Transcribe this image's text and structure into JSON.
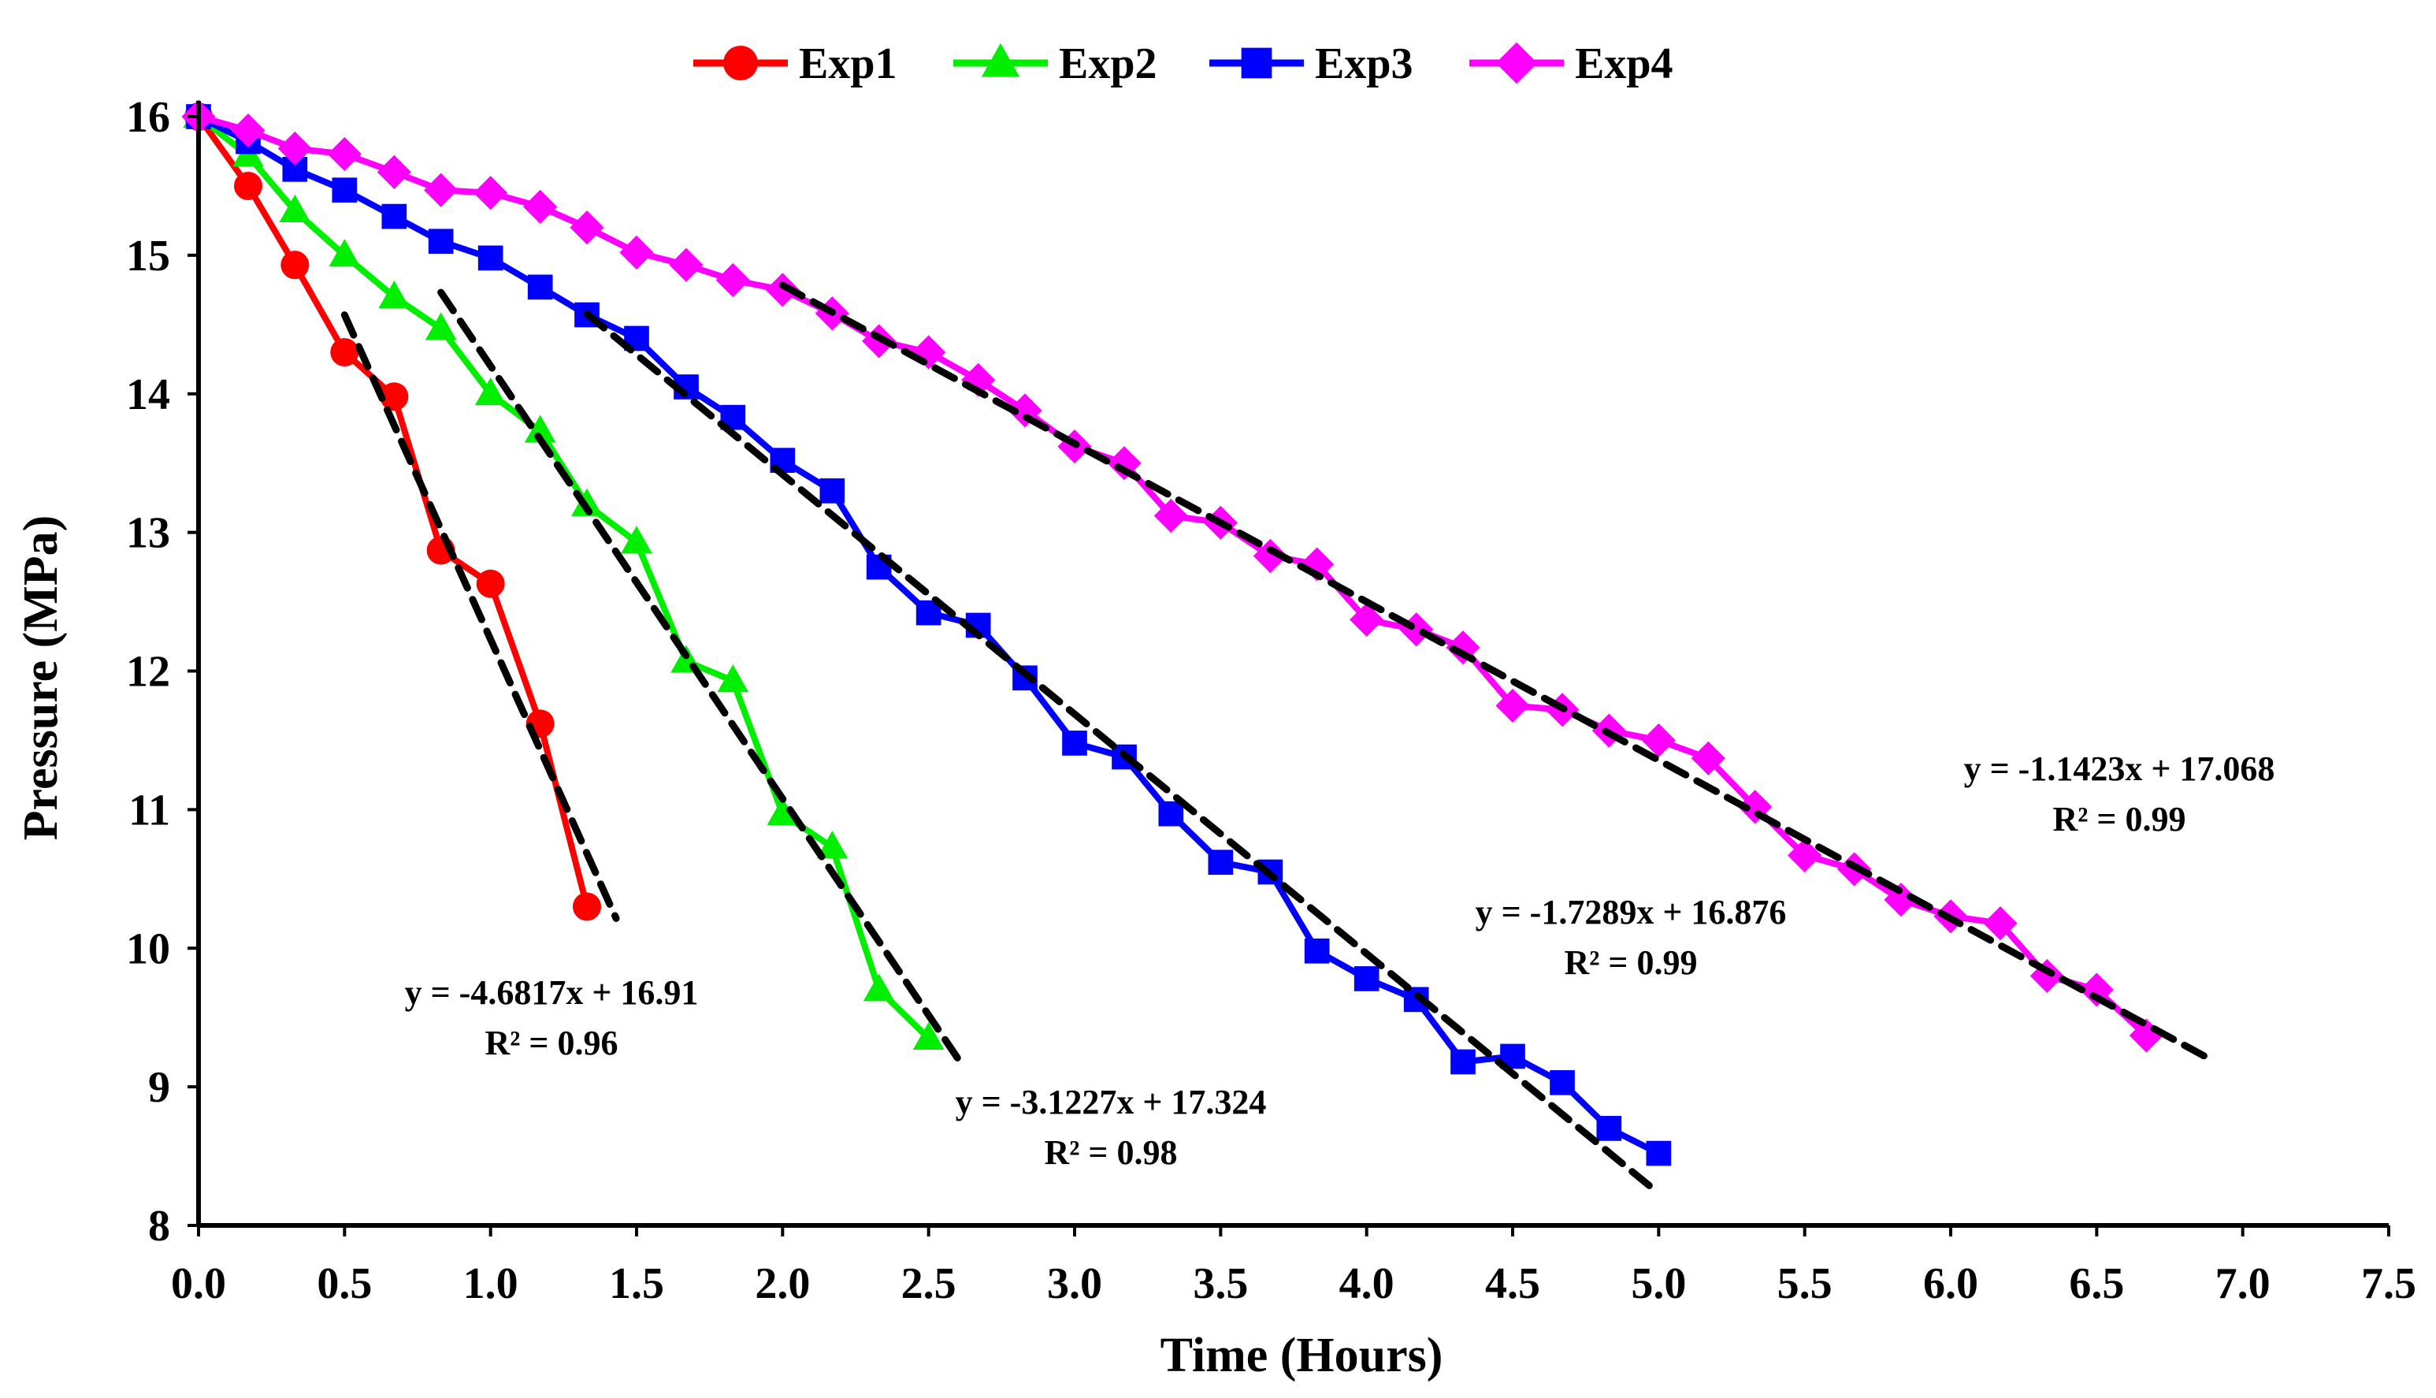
{
  "chart_data": {
    "type": "line",
    "title": "",
    "xlabel": "Time (Hours)",
    "ylabel": "Pressure (MPa)",
    "xlim": [
      0,
      7.5
    ],
    "ylim": [
      8,
      16
    ],
    "x_ticks": [
      "0.0",
      "0.5",
      "1.0",
      "1.5",
      "2.0",
      "2.5",
      "3.0",
      "3.5",
      "4.0",
      "4.5",
      "5.0",
      "5.5",
      "6.0",
      "6.5",
      "7.0",
      "7.5"
    ],
    "y_ticks": [
      "8",
      "9",
      "10",
      "11",
      "12",
      "13",
      "14",
      "15",
      "16"
    ],
    "legend_position": "top",
    "series": [
      {
        "name": "Exp1",
        "color": "#ff0000",
        "marker": "circle",
        "x": [
          0,
          0.17,
          0.33,
          0.5,
          0.67,
          0.83,
          1.0,
          1.17,
          1.33
        ],
        "y": [
          16.0,
          15.5,
          14.93,
          14.3,
          13.98,
          12.87,
          12.63,
          11.62,
          10.3
        ]
      },
      {
        "name": "Exp2",
        "color": "#00ee00",
        "marker": "triangle",
        "x": [
          0,
          0.17,
          0.33,
          0.5,
          0.67,
          0.83,
          1.0,
          1.17,
          1.33,
          1.5,
          1.67,
          1.83,
          2.0,
          2.17,
          2.33,
          2.5
        ],
        "y": [
          16.0,
          15.72,
          15.32,
          15.0,
          14.7,
          14.47,
          14.0,
          13.73,
          13.2,
          12.93,
          12.07,
          11.93,
          10.97,
          10.73,
          9.7,
          9.35
        ]
      },
      {
        "name": "Exp3",
        "color": "#0000ff",
        "marker": "square",
        "x": [
          0,
          0.17,
          0.33,
          0.5,
          0.67,
          0.83,
          1.0,
          1.17,
          1.33,
          1.5,
          1.67,
          1.83,
          2.0,
          2.17,
          2.33,
          2.5,
          2.67,
          2.83,
          3.0,
          3.17,
          3.33,
          3.5,
          3.67,
          3.83,
          4.0,
          4.17,
          4.33,
          4.5,
          4.67,
          4.83,
          5.0
        ],
        "y": [
          16.0,
          15.82,
          15.62,
          15.47,
          15.28,
          15.1,
          14.98,
          14.77,
          14.57,
          14.4,
          14.05,
          13.83,
          13.52,
          13.3,
          12.75,
          12.42,
          12.33,
          11.95,
          11.48,
          11.38,
          10.97,
          10.62,
          10.55,
          9.98,
          9.78,
          9.63,
          9.18,
          9.22,
          9.03,
          8.7,
          8.52
        ]
      },
      {
        "name": "Exp4",
        "color": "#ff00ff",
        "marker": "diamond",
        "x": [
          0,
          0.17,
          0.33,
          0.5,
          0.67,
          0.83,
          1.0,
          1.17,
          1.33,
          1.5,
          1.67,
          1.83,
          2.0,
          2.17,
          2.33,
          2.5,
          2.67,
          2.83,
          3.0,
          3.17,
          3.33,
          3.5,
          3.67,
          3.83,
          4.0,
          4.17,
          4.33,
          4.5,
          4.67,
          4.83,
          5.0,
          5.17,
          5.33,
          5.5,
          5.67,
          5.83,
          6.0,
          6.17,
          6.33,
          6.5,
          6.67
        ],
        "y": [
          16.0,
          15.9,
          15.77,
          15.73,
          15.6,
          15.47,
          15.45,
          15.35,
          15.2,
          15.02,
          14.93,
          14.82,
          14.75,
          14.58,
          14.38,
          14.3,
          14.1,
          13.88,
          13.62,
          13.5,
          13.12,
          13.07,
          12.83,
          12.77,
          12.37,
          12.3,
          12.17,
          11.75,
          11.72,
          11.57,
          11.5,
          11.37,
          11.02,
          10.67,
          10.57,
          10.35,
          10.23,
          10.18,
          9.8,
          9.7,
          9.37
        ]
      }
    ],
    "trendlines": [
      {
        "series": "Exp1",
        "slope": -4.6817,
        "intercept": 16.91,
        "x_range": [
          0.5,
          1.43
        ],
        "equation": "y = -4.6817x + 16.91",
        "r2": "R² = 0.96"
      },
      {
        "series": "Exp2",
        "slope": -3.1227,
        "intercept": 17.324,
        "x_range": [
          0.83,
          2.6
        ],
        "equation": "y = -3.1227x + 17.324",
        "r2": "R² = 0.98"
      },
      {
        "series": "Exp3",
        "slope": -1.7289,
        "intercept": 16.876,
        "x_range": [
          1.33,
          4.97
        ],
        "equation": "y = -1.7289x + 16.876",
        "r2": "R² = 0.99"
      },
      {
        "series": "Exp4",
        "slope": -1.1423,
        "intercept": 17.068,
        "x_range": [
          2.0,
          6.87
        ],
        "equation": "y = -1.1423x + 17.068",
        "r2": "R² = 0.99"
      }
    ]
  }
}
